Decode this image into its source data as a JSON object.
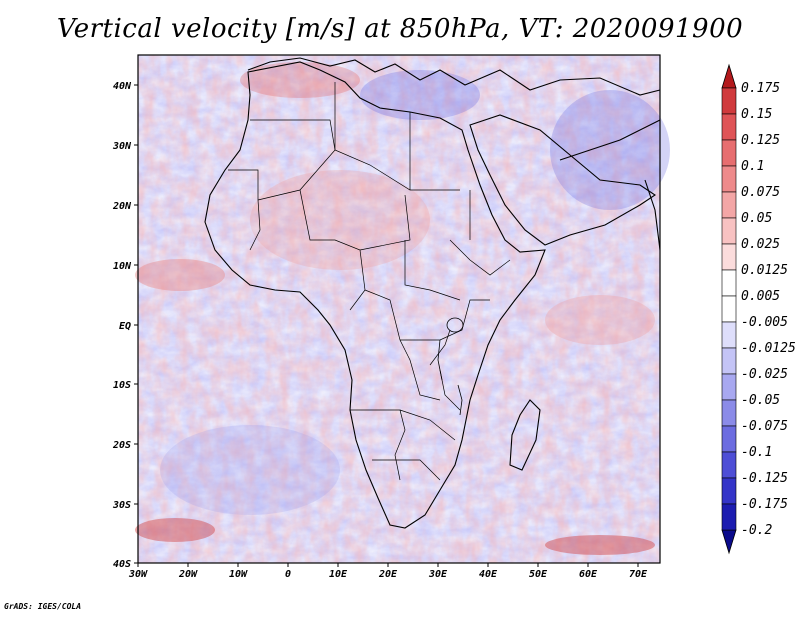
{
  "title": "Vertical velocity [m/s] at 850hPa, VT: 2020091900",
  "credit": "GrADS: IGES/COLA",
  "map": {
    "x_ticks": [
      "30W",
      "20W",
      "10W",
      "0",
      "10E",
      "20E",
      "30E",
      "40E",
      "50E",
      "60E",
      "70E"
    ],
    "y_ticks": [
      "40N",
      "30N",
      "20N",
      "10N",
      "EQ",
      "10S",
      "20S",
      "30S",
      "40S"
    ]
  },
  "colorbar": {
    "labels": [
      "0.175",
      "0.15",
      "0.125",
      "0.1",
      "0.075",
      "0.05",
      "0.025",
      "0.0125",
      "0.005",
      "-0.005",
      "-0.0125",
      "-0.025",
      "-0.05",
      "-0.075",
      "-0.1",
      "-0.125",
      "-0.175",
      "-0.2"
    ],
    "colors": [
      "#b3191c",
      "#d03a3d",
      "#df5457",
      "#e76e70",
      "#ee8a8b",
      "#f3a6a6",
      "#f8c2c2",
      "#fbdcdc",
      "#ffffff",
      "#ffffff",
      "#dedefb",
      "#c4c4f6",
      "#a8a8f0",
      "#8b8be8",
      "#6c6ce0",
      "#4e4ed6",
      "#3434c8",
      "#1c1cb0",
      "#0b0b8c"
    ]
  }
}
